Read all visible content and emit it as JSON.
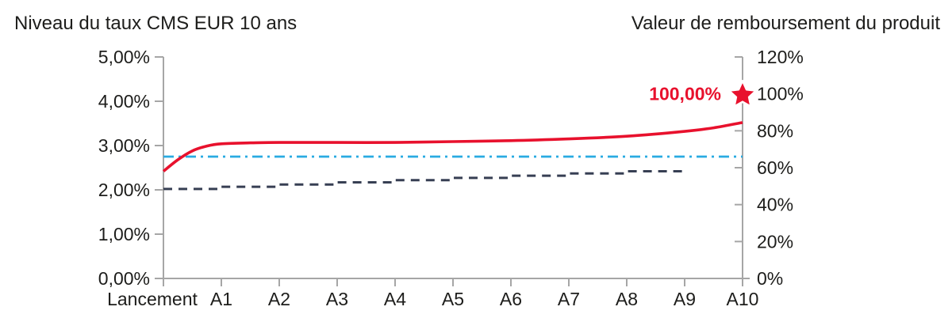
{
  "titles": {
    "left": "Niveau du taux CMS EUR 10 ans",
    "right": "Valeur de remboursement du produit"
  },
  "chart_data": {
    "type": "line",
    "x_categories": [
      "Lancement",
      "A1",
      "A2",
      "A3",
      "A4",
      "A5",
      "A6",
      "A7",
      "A8",
      "A9",
      "A10"
    ],
    "left_axis": {
      "min": 0,
      "max": 5,
      "tick_values": [
        0,
        1,
        2,
        3,
        4,
        5
      ],
      "tick_labels": [
        "0,00%",
        "1,00%",
        "2,00%",
        "3,00%",
        "4,00%",
        "5,00%"
      ]
    },
    "right_axis": {
      "min": 0,
      "max": 120,
      "tick_values": [
        0,
        20,
        40,
        60,
        80,
        100,
        120
      ],
      "tick_labels": [
        "0%",
        "20%",
        "40%",
        "60%",
        "80%",
        "100%",
        "120%"
      ]
    },
    "grid": false,
    "legend": "none",
    "series": [
      {
        "id": "barrier-line",
        "style": "dashdot",
        "axis": "left",
        "color": "#29abe2",
        "width": 2.8,
        "dash": "13 6 3 6",
        "points": [
          [
            0,
            2.75
          ],
          [
            10,
            2.75
          ]
        ]
      },
      {
        "id": "redemption-step-line",
        "style": "step-dashed",
        "axis": "left",
        "color": "#373f53",
        "width": 3,
        "dash": "11 8",
        "step_values": [
          2.02,
          2.07,
          2.12,
          2.17,
          2.22,
          2.27,
          2.32,
          2.37,
          2.42
        ],
        "x_start": 0,
        "x_end": 9
      },
      {
        "id": "cms-rate-line",
        "style": "smooth-solid",
        "axis": "left",
        "color": "#e8112d",
        "width": 3.6,
        "dash": "",
        "points": [
          [
            0,
            2.42
          ],
          [
            0.25,
            2.68
          ],
          [
            0.5,
            2.88
          ],
          [
            0.75,
            2.99
          ],
          [
            1,
            3.04
          ],
          [
            1.5,
            3.06
          ],
          [
            2,
            3.07
          ],
          [
            3,
            3.07
          ],
          [
            4,
            3.07
          ],
          [
            5,
            3.09
          ],
          [
            6,
            3.11
          ],
          [
            7,
            3.15
          ],
          [
            8,
            3.21
          ],
          [
            9,
            3.32
          ],
          [
            9.5,
            3.4
          ],
          [
            10,
            3.52
          ]
        ]
      }
    ],
    "annotation": {
      "label": "100,00%",
      "x": 10,
      "right_axis_value": 100,
      "marker": "star",
      "color": "#e8112d"
    }
  },
  "style": {
    "axis_color": "#a6a6a6",
    "text_color": "#1d1d1b",
    "tick_font_size": 23,
    "annotation_font_size": 23
  }
}
